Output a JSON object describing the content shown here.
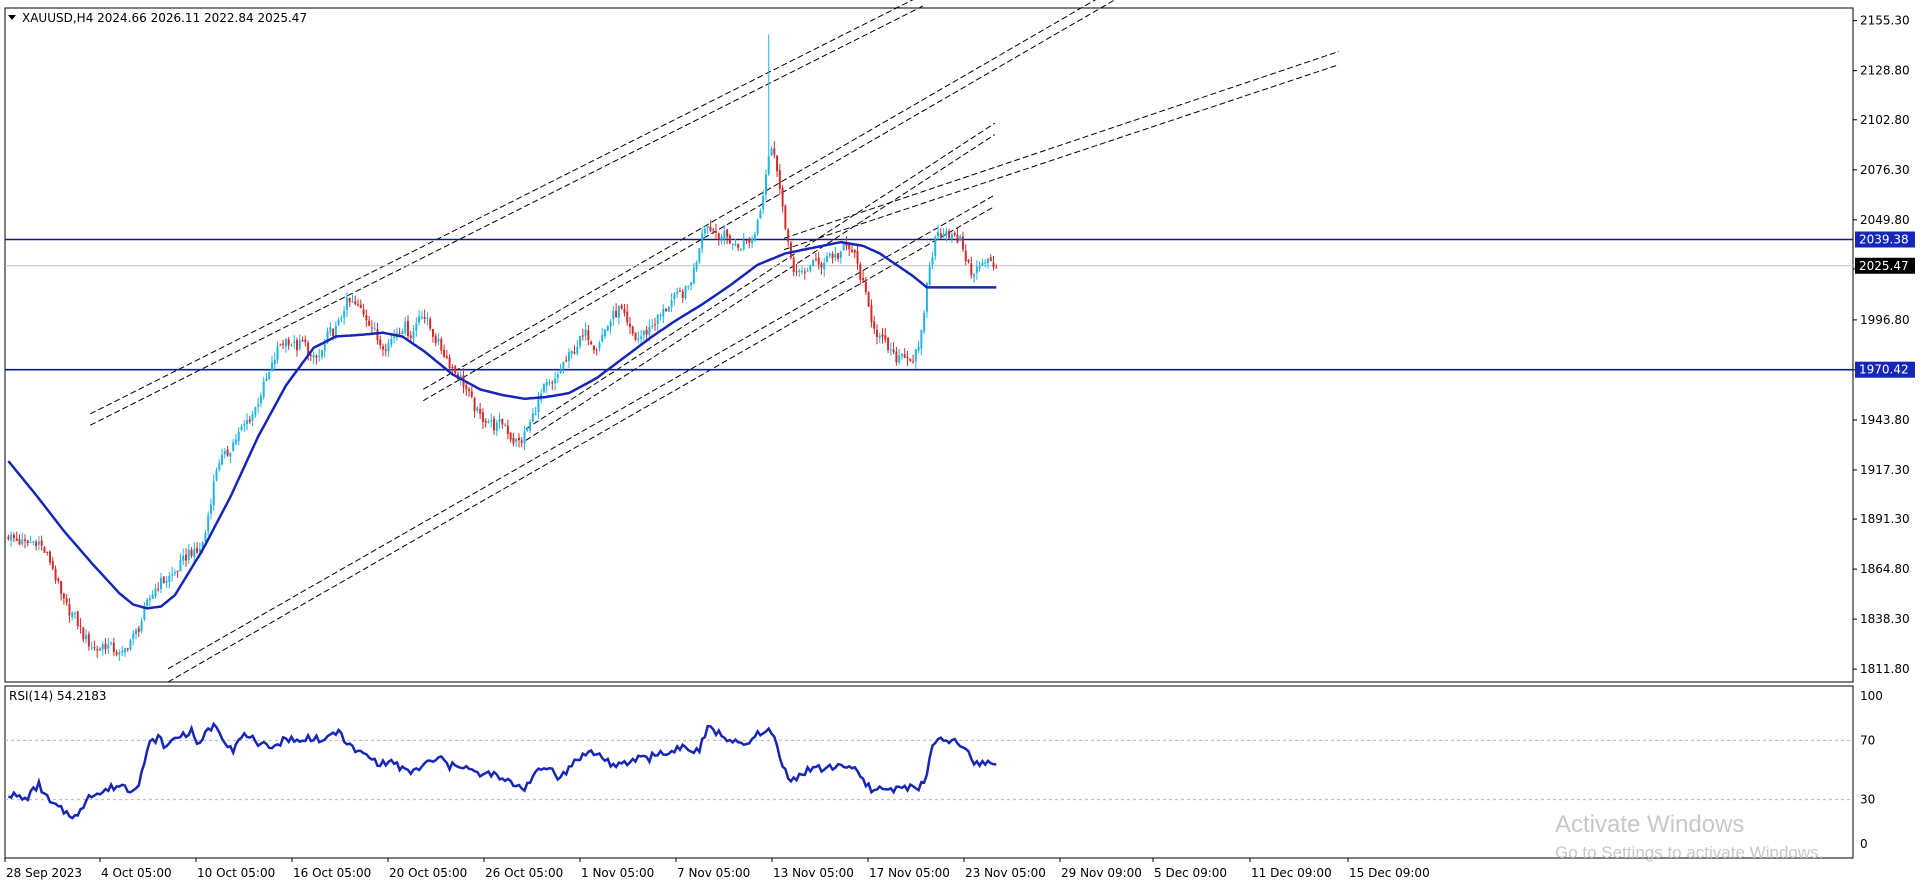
{
  "chart_data": [
    {
      "type": "candlestick",
      "symbol_header": "XAUUSD,H4  2024.66 2026.11 2022.84 2025.47",
      "y_ticks": [
        "2155.30",
        "2128.80",
        "2102.80",
        "2076.30",
        "2049.80",
        "2023.80",
        "1996.80",
        "1970.40",
        "1943.80",
        "1917.30",
        "1891.30",
        "1864.80",
        "1838.30",
        "1811.80"
      ],
      "ylim": [
        1805,
        2162
      ],
      "x_labels": [
        "28 Sep 2023",
        "4 Oct 05:00",
        "10 Oct 05:00",
        "16 Oct 05:00",
        "20 Oct 05:00",
        "26 Oct 05:00",
        "1 Nov 05:00",
        "7 Nov 05:00",
        "13 Nov 05:00",
        "17 Nov 05:00",
        "23 Nov 05:00",
        "29 Nov 09:00",
        "5 Dec 09:00",
        "11 Dec 09:00",
        "15 Dec 09:00"
      ],
      "series_path": [
        [
          0,
          1883
        ],
        [
          6,
          1878
        ],
        [
          11,
          1880
        ],
        [
          16,
          1868
        ],
        [
          20,
          1848
        ],
        [
          25,
          1838
        ],
        [
          28,
          1828
        ],
        [
          32,
          1822
        ],
        [
          35,
          1825
        ],
        [
          39,
          1822
        ],
        [
          41,
          1818
        ],
        [
          44,
          1826
        ],
        [
          47,
          1832
        ],
        [
          51,
          1848
        ],
        [
          54,
          1856
        ],
        [
          57,
          1859
        ],
        [
          60,
          1862
        ],
        [
          63,
          1868
        ],
        [
          66,
          1875
        ],
        [
          68,
          1872
        ],
        [
          71,
          1880
        ],
        [
          73,
          1898
        ],
        [
          76,
          1922
        ],
        [
          79,
          1925
        ],
        [
          82,
          1933
        ],
        [
          86,
          1942
        ],
        [
          89,
          1948
        ],
        [
          92,
          1960
        ],
        [
          95,
          1970
        ],
        [
          98,
          1983
        ],
        [
          101,
          1987
        ],
        [
          104,
          1982
        ],
        [
          107,
          1985
        ],
        [
          110,
          1975
        ],
        [
          113,
          1978
        ],
        [
          116,
          1990
        ],
        [
          119,
          1992
        ],
        [
          122,
          2006
        ],
        [
          125,
          2005
        ],
        [
          128,
          2002
        ],
        [
          131,
          1995
        ],
        [
          134,
          1985
        ],
        [
          137,
          1983
        ],
        [
          140,
          1990
        ],
        [
          143,
          1994
        ],
        [
          146,
          1988
        ],
        [
          149,
          2002
        ],
        [
          152,
          1994
        ],
        [
          155,
          1985
        ],
        [
          158,
          1978
        ],
        [
          161,
          1970
        ],
        [
          164,
          1965
        ],
        [
          167,
          1955
        ],
        [
          170,
          1946
        ],
        [
          173,
          1944
        ],
        [
          176,
          1940
        ],
        [
          179,
          1943
        ],
        [
          182,
          1933
        ],
        [
          185,
          1932
        ],
        [
          188,
          1940
        ],
        [
          191,
          1952
        ],
        [
          194,
          1962
        ],
        [
          197,
          1962
        ],
        [
          200,
          1973
        ],
        [
          203,
          1978
        ],
        [
          206,
          1985
        ],
        [
          209,
          1990
        ],
        [
          212,
          1982
        ],
        [
          215,
          1990
        ],
        [
          218,
          1998
        ],
        [
          221,
          2003
        ],
        [
          224,
          1992
        ],
        [
          227,
          1986
        ],
        [
          230,
          1990
        ],
        [
          233,
          1995
        ],
        [
          236,
          2000
        ],
        [
          239,
          2006
        ],
        [
          242,
          2010
        ],
        [
          245,
          2012
        ],
        [
          248,
          2025
        ],
        [
          251,
          2048
        ],
        [
          254,
          2045
        ],
        [
          257,
          2042
        ],
        [
          260,
          2040
        ],
        [
          263,
          2035
        ],
        [
          266,
          2038
        ],
        [
          269,
          2040
        ],
        [
          272,
          2060
        ],
        [
          275,
          2090
        ],
        [
          278,
          2075
        ],
        [
          281,
          2038
        ],
        [
          284,
          2022
        ],
        [
          287,
          2020
        ],
        [
          290,
          2028
        ],
        [
          293,
          2025
        ],
        [
          296,
          2032
        ],
        [
          299,
          2030
        ],
        [
          302,
          2035
        ],
        [
          305,
          2033
        ],
        [
          308,
          2018
        ],
        [
          311,
          2000
        ],
        [
          314,
          1988
        ],
        [
          317,
          1983
        ],
        [
          320,
          1976
        ],
        [
          323,
          1980
        ],
        [
          326,
          1975
        ],
        [
          329,
          1982
        ],
        [
          332,
          2022
        ],
        [
          335,
          2042
        ],
        [
          338,
          2045
        ],
        [
          341,
          2040
        ],
        [
          344,
          2038
        ],
        [
          347,
          2022
        ],
        [
          350,
          2024
        ],
        [
          353,
          2028
        ],
        [
          356,
          2025
        ]
      ],
      "overlay_moving_average": [
        [
          0,
          1922
        ],
        [
          10,
          1904
        ],
        [
          20,
          1885
        ],
        [
          30,
          1868
        ],
        [
          40,
          1852
        ],
        [
          45,
          1846
        ],
        [
          50,
          1844
        ],
        [
          55,
          1845
        ],
        [
          60,
          1851
        ],
        [
          70,
          1875
        ],
        [
          80,
          1903
        ],
        [
          90,
          1935
        ],
        [
          100,
          1962
        ],
        [
          110,
          1982
        ],
        [
          118,
          1988
        ],
        [
          128,
          1989
        ],
        [
          135,
          1990
        ],
        [
          142,
          1988
        ],
        [
          150,
          1980
        ],
        [
          160,
          1968
        ],
        [
          170,
          1960
        ],
        [
          178,
          1957
        ],
        [
          186,
          1955
        ],
        [
          194,
          1956
        ],
        [
          202,
          1958
        ],
        [
          212,
          1966
        ],
        [
          222,
          1977
        ],
        [
          232,
          1988
        ],
        [
          240,
          1996
        ],
        [
          250,
          2005
        ],
        [
          260,
          2015
        ],
        [
          270,
          2026
        ],
        [
          280,
          2032
        ],
        [
          290,
          2035
        ],
        [
          300,
          2038
        ],
        [
          308,
          2036
        ],
        [
          314,
          2032
        ],
        [
          320,
          2026
        ],
        [
          326,
          2020
        ],
        [
          331,
          2014
        ],
        [
          336,
          2014
        ],
        [
          346,
          2014
        ],
        [
          356,
          2014
        ]
      ],
      "horizontal_levels": [
        2039.38,
        1970.42
      ],
      "current_price": 2025.47,
      "trend_lines": [
        [
          [
            58,
            1805
          ],
          [
            356,
            2057
          ]
        ],
        [
          [
            58,
            1812
          ],
          [
            356,
            2063
          ]
        ],
        [
          [
            187,
            1933
          ],
          [
            356,
            2095
          ]
        ],
        [
          [
            187,
            1939
          ],
          [
            356,
            2101
          ]
        ],
        [
          [
            150,
            1954
          ],
          [
            400,
            2167
          ]
        ],
        [
          [
            150,
            1960
          ],
          [
            400,
            2173
          ]
        ],
        [
          [
            30,
            1941
          ],
          [
            330,
            2163
          ]
        ],
        [
          [
            30,
            1947
          ],
          [
            330,
            2169
          ]
        ],
        [
          [
            280,
            2034
          ],
          [
            480,
            2132
          ]
        ],
        [
          [
            280,
            2040
          ],
          [
            480,
            2139
          ]
        ]
      ],
      "x_bars_max": 480
    },
    {
      "type": "line",
      "label": "RSI(14) 54.2183",
      "y_ticks": [
        "100",
        "70",
        "30",
        "0"
      ],
      "levels": [
        70,
        30
      ],
      "ylim": [
        0,
        100
      ],
      "values": [
        [
          0,
          34
        ],
        [
          6,
          30
        ],
        [
          11,
          40
        ],
        [
          15,
          28
        ],
        [
          20,
          22
        ],
        [
          25,
          18
        ],
        [
          29,
          34
        ],
        [
          33,
          34
        ],
        [
          37,
          38
        ],
        [
          41,
          40
        ],
        [
          44,
          36
        ],
        [
          47,
          42
        ],
        [
          51,
          68
        ],
        [
          54,
          72
        ],
        [
          57,
          65
        ],
        [
          60,
          72
        ],
        [
          63,
          74
        ],
        [
          66,
          76
        ],
        [
          69,
          66
        ],
        [
          72,
          78
        ],
        [
          75,
          80
        ],
        [
          78,
          70
        ],
        [
          81,
          64
        ],
        [
          84,
          72
        ],
        [
          87,
          74
        ],
        [
          90,
          64
        ],
        [
          93,
          68
        ],
        [
          96,
          66
        ],
        [
          99,
          70
        ],
        [
          102,
          72
        ],
        [
          105,
          68
        ],
        [
          108,
          72
        ],
        [
          111,
          72
        ],
        [
          114,
          68
        ],
        [
          117,
          76
        ],
        [
          120,
          74
        ],
        [
          123,
          66
        ],
        [
          126,
          62
        ],
        [
          129,
          60
        ],
        [
          132,
          56
        ],
        [
          135,
          54
        ],
        [
          138,
          56
        ],
        [
          141,
          52
        ],
        [
          144,
          48
        ],
        [
          147,
          50
        ],
        [
          150,
          54
        ],
        [
          153,
          56
        ],
        [
          156,
          58
        ],
        [
          159,
          52
        ],
        [
          162,
          54
        ],
        [
          165,
          52
        ],
        [
          168,
          48
        ],
        [
          171,
          46
        ],
        [
          174,
          48
        ],
        [
          177,
          44
        ],
        [
          180,
          42
        ],
        [
          183,
          40
        ],
        [
          186,
          38
        ],
        [
          189,
          46
        ],
        [
          192,
          50
        ],
        [
          195,
          52
        ],
        [
          198,
          46
        ],
        [
          201,
          48
        ],
        [
          204,
          56
        ],
        [
          207,
          60
        ],
        [
          210,
          62
        ],
        [
          213,
          60
        ],
        [
          216,
          56
        ],
        [
          219,
          52
        ],
        [
          222,
          54
        ],
        [
          225,
          56
        ],
        [
          228,
          60
        ],
        [
          231,
          58
        ],
        [
          234,
          62
        ],
        [
          237,
          60
        ],
        [
          240,
          64
        ],
        [
          243,
          66
        ],
        [
          246,
          62
        ],
        [
          249,
          64
        ],
        [
          252,
          78
        ],
        [
          255,
          76
        ],
        [
          258,
          72
        ],
        [
          261,
          70
        ],
        [
          264,
          66
        ],
        [
          267,
          68
        ],
        [
          270,
          74
        ],
        [
          273,
          78
        ],
        [
          276,
          72
        ],
        [
          279,
          52
        ],
        [
          282,
          44
        ],
        [
          285,
          46
        ],
        [
          288,
          50
        ],
        [
          291,
          52
        ],
        [
          294,
          50
        ],
        [
          297,
          52
        ],
        [
          300,
          54
        ],
        [
          303,
          52
        ],
        [
          306,
          48
        ],
        [
          309,
          40
        ],
        [
          312,
          36
        ],
        [
          315,
          38
        ],
        [
          318,
          36
        ],
        [
          321,
          40
        ],
        [
          324,
          38
        ],
        [
          327,
          38
        ],
        [
          330,
          40
        ],
        [
          333,
          66
        ],
        [
          336,
          70
        ],
        [
          339,
          70
        ],
        [
          342,
          68
        ],
        [
          345,
          64
        ],
        [
          348,
          54
        ],
        [
          351,
          55
        ],
        [
          354,
          55
        ],
        [
          356,
          54
        ]
      ]
    }
  ],
  "watermark": {
    "line1": "Activate Windows",
    "line2": "Go to Settings to activate Windows."
  }
}
